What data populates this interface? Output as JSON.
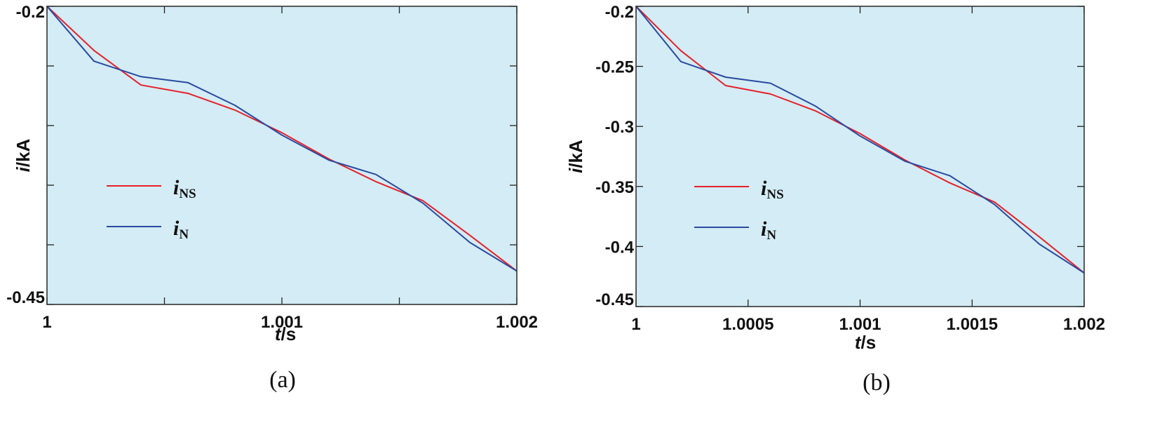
{
  "chart_data": [
    {
      "type": "line",
      "caption": "(a)",
      "xlabel": {
        "var": "t",
        "unit": "/s"
      },
      "ylabel": {
        "var": "i",
        "unit": "/kA"
      },
      "xlim": [
        1.0,
        1.002
      ],
      "ylim": [
        -0.45,
        -0.2
      ],
      "xticks": [
        1.0,
        1.0005,
        1.001,
        1.0015,
        1.002
      ],
      "xtick_labels": [
        "1",
        "",
        "1.001",
        "",
        "1.002"
      ],
      "yticks": [
        -0.2,
        -0.25,
        -0.3,
        -0.35,
        -0.4,
        -0.45
      ],
      "ytick_labels": [
        "-0.2",
        "",
        "",
        "",
        "",
        "-0.45"
      ],
      "legend_position": "center-left",
      "background": "#d3ecf5",
      "grid": false,
      "series": [
        {
          "name": "i",
          "subscript": "NS",
          "color": "#e8202a",
          "x": [
            1.0,
            1.0002,
            1.0004,
            1.0006,
            1.0008,
            1.001,
            1.0012,
            1.0014,
            1.0016,
            1.0018,
            1.002
          ],
          "y": [
            -0.2,
            -0.237,
            -0.266,
            -0.273,
            -0.287,
            -0.306,
            -0.328,
            -0.347,
            -0.363,
            -0.392,
            -0.422
          ]
        },
        {
          "name": "i",
          "subscript": "N",
          "color": "#2a4aa0",
          "x": [
            1.0,
            1.0002,
            1.0004,
            1.0006,
            1.0008,
            1.001,
            1.0012,
            1.0014,
            1.0016,
            1.0018,
            1.002
          ],
          "y": [
            -0.2,
            -0.246,
            -0.259,
            -0.264,
            -0.283,
            -0.308,
            -0.329,
            -0.341,
            -0.365,
            -0.398,
            -0.422
          ]
        }
      ]
    },
    {
      "type": "line",
      "caption": "(b)",
      "xlabel": {
        "var": "t",
        "unit": "/s"
      },
      "ylabel": {
        "var": "i",
        "unit": "/kA"
      },
      "xlim": [
        1.0,
        1.002
      ],
      "ylim": [
        -0.45,
        -0.2
      ],
      "xticks": [
        1.0,
        1.0005,
        1.001,
        1.0015,
        1.002
      ],
      "xtick_labels": [
        "1",
        "1.0005",
        "1.001",
        "1.0015",
        "1.002"
      ],
      "yticks": [
        -0.2,
        -0.25,
        -0.3,
        -0.35,
        -0.4,
        -0.45
      ],
      "ytick_labels": [
        "-0.2",
        "-0.25",
        "-0.3",
        "-0.35",
        "-0.4",
        "-0.45"
      ],
      "legend_position": "center-left",
      "background": "#d3ecf5",
      "grid": false,
      "series": [
        {
          "name": "i",
          "subscript": "NS",
          "color": "#e8202a",
          "x": [
            1.0,
            1.0002,
            1.0004,
            1.0006,
            1.0008,
            1.001,
            1.0012,
            1.0014,
            1.0016,
            1.0018,
            1.002
          ],
          "y": [
            -0.2,
            -0.237,
            -0.266,
            -0.273,
            -0.287,
            -0.306,
            -0.328,
            -0.347,
            -0.363,
            -0.392,
            -0.422
          ]
        },
        {
          "name": "i",
          "subscript": "N",
          "color": "#2a4aa0",
          "x": [
            1.0,
            1.0002,
            1.0004,
            1.0006,
            1.0008,
            1.001,
            1.0012,
            1.0014,
            1.0016,
            1.0018,
            1.002
          ],
          "y": [
            -0.2,
            -0.246,
            -0.259,
            -0.264,
            -0.283,
            -0.308,
            -0.329,
            -0.341,
            -0.365,
            -0.398,
            -0.422
          ]
        }
      ]
    }
  ]
}
